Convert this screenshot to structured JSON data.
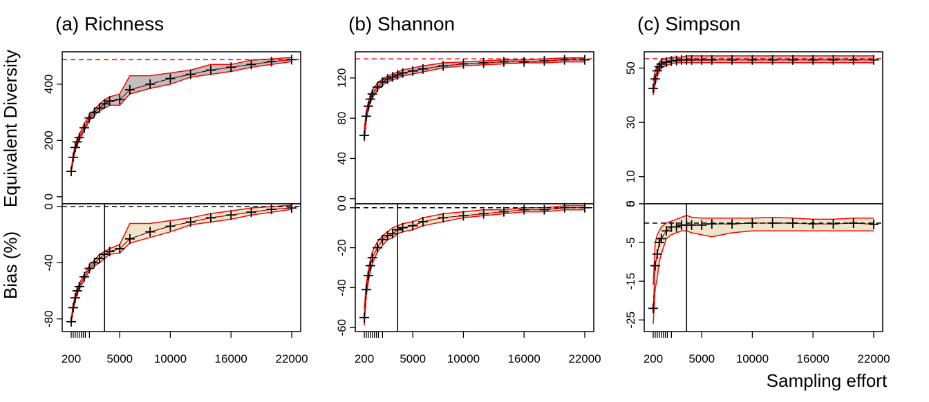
{
  "ylabels": {
    "top": "Equivalent Diversity",
    "bottom": "Bias (%)"
  },
  "xlabel": "Sampling effort",
  "colors": {
    "band_top": "#c0c0c0",
    "band_bottom": "#eee6cc",
    "limit_line": "#ff0000",
    "reference_line": "#000000"
  },
  "chart_data": [
    {
      "type": "area",
      "title": "(a) Richness",
      "x_ticks": [
        200,
        5000,
        10000,
        16000,
        22000
      ],
      "minor_x_ticks": [
        400,
        600,
        800,
        1000,
        1200,
        1400,
        1600,
        2000
      ],
      "vline_x": 3500,
      "top": {
        "ylim": [
          -25,
          515
        ],
        "yticks": [
          0,
          200,
          400
        ],
        "hline": 487,
        "x": [
          200,
          400,
          600,
          800,
          1000,
          1500,
          2000,
          2500,
          3000,
          3500,
          4000,
          5000,
          6000,
          8000,
          10000,
          12000,
          14000,
          16000,
          18000,
          20000,
          22000
        ],
        "mean": [
          90,
          140,
          175,
          195,
          210,
          245,
          280,
          300,
          315,
          330,
          340,
          345,
          380,
          400,
          420,
          435,
          450,
          460,
          470,
          480,
          487
        ],
        "lower": [
          85,
          130,
          165,
          185,
          200,
          235,
          270,
          290,
          305,
          315,
          325,
          325,
          365,
          385,
          400,
          425,
          435,
          445,
          460,
          470,
          480
        ],
        "upper": [
          95,
          150,
          185,
          205,
          220,
          260,
          290,
          310,
          330,
          345,
          355,
          365,
          430,
          430,
          440,
          450,
          470,
          470,
          485,
          490,
          495
        ]
      },
      "bottom": {
        "ylim": [
          -89,
          2
        ],
        "yticks": [
          0,
          -40,
          -80
        ],
        "hline": 0,
        "x": [
          200,
          400,
          600,
          800,
          1000,
          1500,
          2000,
          2500,
          3000,
          3500,
          4000,
          5000,
          6000,
          8000,
          10000,
          12000,
          14000,
          16000,
          18000,
          20000,
          22000
        ],
        "mean": [
          -82,
          -72,
          -65,
          -60,
          -57,
          -50,
          -44,
          -40,
          -37,
          -34,
          -32,
          -30,
          -23,
          -18,
          -14,
          -11,
          -8,
          -6,
          -4,
          -2,
          -1
        ],
        "lower": [
          -83,
          -74,
          -67,
          -62,
          -59,
          -52,
          -46,
          -42,
          -40,
          -37,
          -34,
          -33,
          -26,
          -22,
          -18,
          -13,
          -11,
          -9,
          -6,
          -4,
          -2
        ],
        "upper": [
          -80,
          -70,
          -63,
          -58,
          -55,
          -48,
          -42,
          -38,
          -34,
          -32,
          -30,
          -27,
          -12,
          -12,
          -10,
          -8,
          -5,
          -3,
          -1,
          0,
          1
        ]
      }
    },
    {
      "type": "area",
      "title": "(b) Shannon",
      "x_ticks": [
        200,
        5000,
        10000,
        16000,
        22000
      ],
      "minor_x_ticks": [
        400,
        600,
        800,
        1000,
        1200,
        1400,
        1600,
        2000
      ],
      "vline_x": 3500,
      "top": {
        "ylim": [
          -5,
          146
        ],
        "yticks": [
          0,
          40,
          80,
          120
        ],
        "hline": 139,
        "x": [
          200,
          400,
          600,
          800,
          1000,
          1500,
          2000,
          2500,
          3000,
          3500,
          4000,
          5000,
          6000,
          8000,
          10000,
          12000,
          14000,
          16000,
          18000,
          20000,
          22000
        ],
        "mean": [
          63,
          82,
          92,
          99,
          104,
          111,
          116,
          119,
          121,
          123,
          125,
          127,
          129,
          132,
          134,
          135,
          136,
          136,
          137,
          138,
          138
        ],
        "lower": [
          57,
          78,
          88,
          95,
          100,
          108,
          113,
          116,
          118,
          120,
          122,
          124,
          126,
          130,
          132,
          133,
          134,
          135,
          135,
          136,
          136
        ],
        "upper": [
          69,
          87,
          96,
          103,
          108,
          115,
          119,
          122,
          124,
          126,
          128,
          130,
          132,
          135,
          136,
          137,
          138,
          138,
          139,
          140,
          140
        ]
      },
      "bottom": {
        "ylim": [
          -62,
          2
        ],
        "yticks": [
          0,
          -20,
          -40,
          -60
        ],
        "hline": 0,
        "x": [
          200,
          400,
          600,
          800,
          1000,
          1500,
          2000,
          2500,
          3000,
          3500,
          4000,
          5000,
          6000,
          8000,
          10000,
          12000,
          14000,
          16000,
          18000,
          20000,
          22000
        ],
        "mean": [
          -55,
          -41,
          -34,
          -29,
          -25,
          -20,
          -16,
          -14,
          -13,
          -11,
          -10,
          -9,
          -7,
          -5,
          -4,
          -3,
          -2,
          -1,
          -1,
          0,
          0
        ],
        "lower": [
          -59,
          -44,
          -37,
          -32,
          -28,
          -22,
          -19,
          -16,
          -15,
          -13,
          -12,
          -11,
          -9,
          -7,
          -5,
          -4,
          -3,
          -2,
          -2,
          -1,
          -1
        ],
        "upper": [
          -51,
          -38,
          -31,
          -26,
          -22,
          -17,
          -14,
          -12,
          -10,
          -9,
          -8,
          -7,
          -5,
          -3,
          -2,
          -1,
          -1,
          0,
          0,
          1,
          1
        ]
      }
    },
    {
      "type": "area",
      "title": "(c) Simpson",
      "x_ticks": [
        200,
        5000,
        10000,
        16000,
        22000
      ],
      "minor_x_ticks": [
        400,
        600,
        800,
        1000,
        1200,
        1400,
        1600,
        2000
      ],
      "vline_x": 3500,
      "top": {
        "ylim": [
          0,
          56
        ],
        "yticks": [
          0,
          10,
          30,
          50
        ],
        "hline": 53.5,
        "x": [
          200,
          400,
          600,
          800,
          1000,
          1500,
          2000,
          2500,
          3000,
          3500,
          4000,
          5000,
          6000,
          8000,
          10000,
          12000,
          14000,
          16000,
          18000,
          20000,
          22000
        ],
        "mean": [
          42.5,
          46,
          49,
          50.5,
          51.5,
          52.2,
          52.6,
          52.8,
          53,
          53,
          53,
          53,
          53,
          53,
          53,
          53,
          53,
          53,
          53,
          53,
          53
        ],
        "lower": [
          40,
          44,
          47,
          49,
          50,
          51,
          51.5,
          52,
          52,
          52,
          52,
          52,
          52,
          52,
          52,
          52,
          52,
          52,
          52,
          52,
          52
        ],
        "upper": [
          45,
          49,
          51,
          52,
          53,
          53.5,
          54,
          54,
          54,
          54.5,
          54.5,
          54.5,
          54.5,
          54.5,
          54.5,
          54.5,
          54.5,
          54.5,
          54.5,
          54.5,
          54.5
        ]
      },
      "bottom": {
        "ylim": [
          -28,
          5
        ],
        "yticks": [
          5,
          -5,
          -15,
          -25
        ],
        "hline": 0,
        "x": [
          200,
          400,
          600,
          800,
          1000,
          1500,
          2000,
          2500,
          3000,
          3500,
          4000,
          5000,
          6000,
          8000,
          10000,
          12000,
          14000,
          16000,
          18000,
          20000,
          22000
        ],
        "mean": [
          -22,
          -11,
          -8,
          -5,
          -4,
          -2,
          -1,
          -1,
          -0.5,
          -0.5,
          -0.5,
          -0.5,
          -0.2,
          -0.2,
          0,
          0,
          0,
          -0.2,
          -0.2,
          0,
          -0.3
        ],
        "lower": [
          -26,
          -17,
          -14,
          -10,
          -8,
          -4,
          -3,
          -2.5,
          -2,
          -2,
          -2.5,
          -3,
          -3.5,
          -2.5,
          -2,
          -2,
          -2,
          -2,
          -2,
          -2,
          -2
        ],
        "upper": [
          -16,
          -5,
          -3,
          -2,
          -1,
          0,
          0.5,
          1,
          1.5,
          2,
          1.5,
          1.3,
          1.3,
          1.3,
          1.3,
          1.5,
          1.3,
          1,
          1,
          1.3,
          1.3
        ]
      }
    }
  ]
}
